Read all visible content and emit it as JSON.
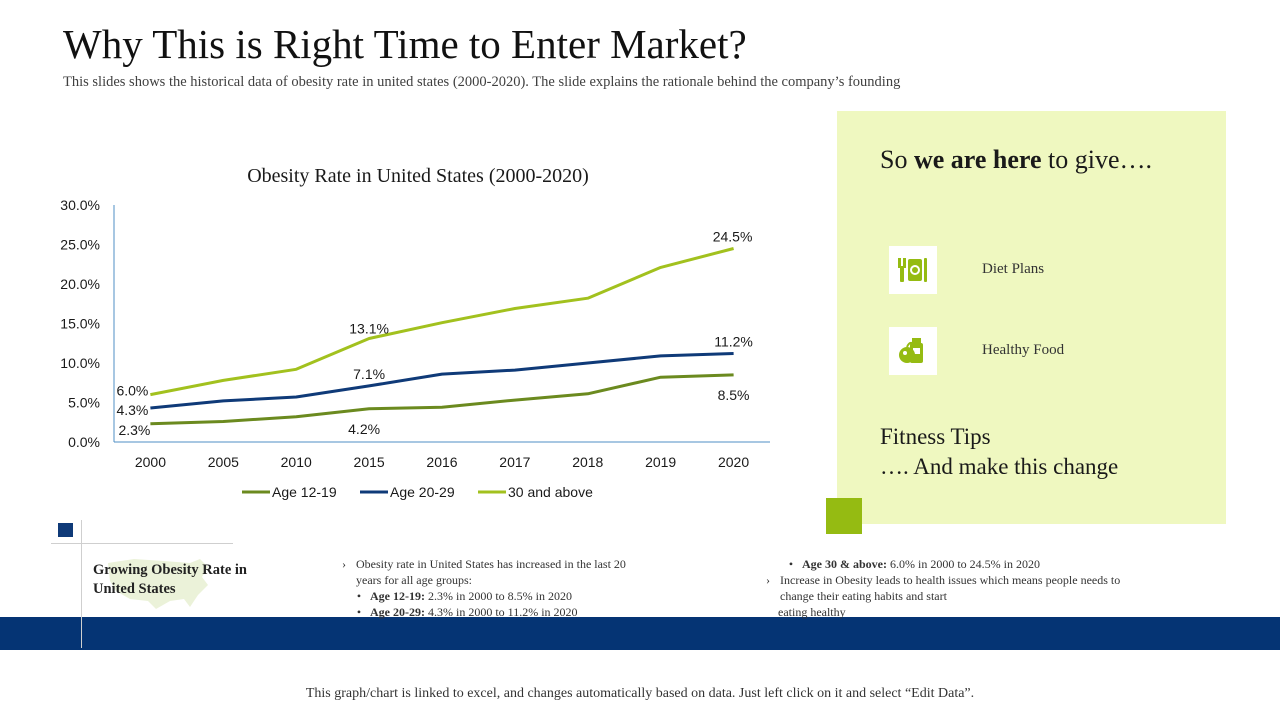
{
  "slide": {
    "title": "Why This is Right Time to Enter Market?",
    "subtitle": "This slides shows the historical data of obesity rate in united states (2000-2020). The slide explains the rationale behind the company’s founding"
  },
  "chart_data": {
    "type": "line",
    "title": "Obesity Rate in United States (2000-2020)",
    "xlabel": "",
    "ylabel": "",
    "categories": [
      "2000",
      "2005",
      "2010",
      "2015",
      "2016",
      "2017",
      "2018",
      "2019",
      "2020"
    ],
    "ylim": [
      0,
      30
    ],
    "yticks": [
      "0.0%",
      "5.0%",
      "10.0%",
      "15.0%",
      "20.0%",
      "25.0%",
      "30.0%"
    ],
    "grid": false,
    "legend_position": "bottom",
    "series": [
      {
        "name": "Age 12-19",
        "color": "#6b8a1f",
        "values": [
          2.3,
          2.6,
          3.2,
          4.2,
          4.4,
          5.3,
          6.1,
          8.2,
          8.5
        ]
      },
      {
        "name": "Age 20-29",
        "color": "#0f3a78",
        "values": [
          4.3,
          5.2,
          5.7,
          7.1,
          8.6,
          9.1,
          10.0,
          10.9,
          11.2
        ]
      },
      {
        "name": "30 and above",
        "color": "#a2c11e",
        "values": [
          6.0,
          7.8,
          9.2,
          13.1,
          15.1,
          16.9,
          18.2,
          22.1,
          24.5
        ]
      }
    ],
    "data_labels": [
      "6.0%",
      "4.3%",
      "2.3%",
      "13.1%",
      "7.1%",
      "4.2%",
      "24.5%",
      "11.2%",
      "8.5%"
    ]
  },
  "panel": {
    "heading_pre": "So ",
    "heading_bold": "we are here",
    "heading_post": " to give….",
    "items": [
      {
        "label": "Diet Plans",
        "icon": "diet-plan-icon"
      },
      {
        "label": "Healthy Food",
        "icon": "healthy-food-icon"
      }
    ],
    "footer_line1": "Fitness Tips",
    "footer_line2": "…. And make this change"
  },
  "bottom": {
    "section_title": "Growing Obesity Rate in United States",
    "col1": {
      "intro": "Obesity rate in United States has increased in the last 20 years for all age groups:",
      "items": [
        {
          "bold": "Age 12-19:",
          "text": " 2.3% in 2000 to 8.5% in 2020"
        },
        {
          "bold": "Age 20-29:",
          "text": " 4.3% in 2000 to 11.2% in 2020"
        }
      ]
    },
    "col2": {
      "item": {
        "bold": "Age 30 & above:",
        "text": " 6.0% in 2000 to 24.5% in 2020"
      },
      "line1": "Increase in Obesity leads to health issues which means people needs to",
      "line2": "change their eating habits and start",
      "line3": "eating healthy"
    }
  },
  "footnote": "This graph/chart is linked to excel, and changes automatically based on data. Just left click on it and select “Edit Data”."
}
